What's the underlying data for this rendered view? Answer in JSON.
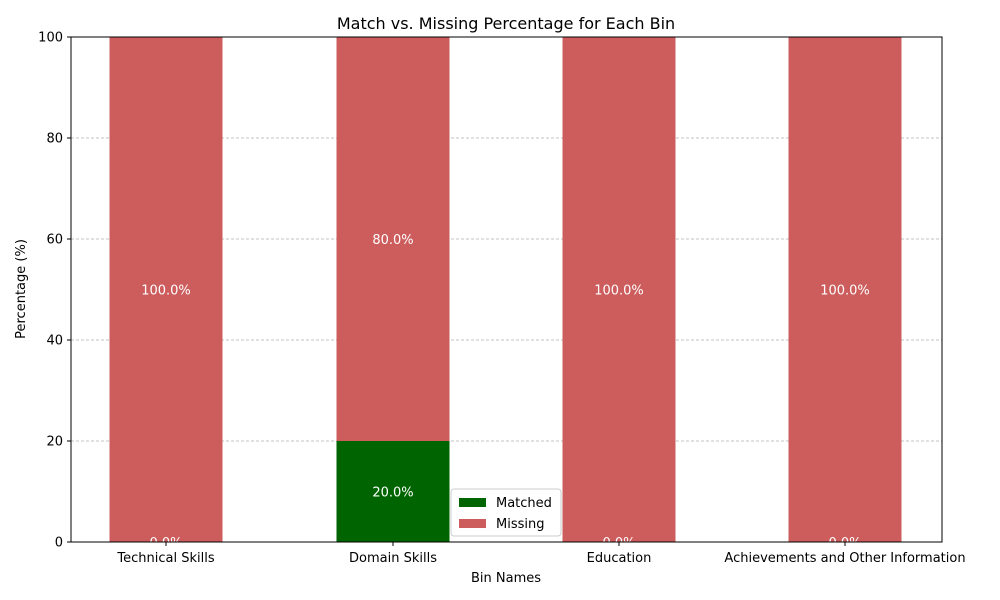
{
  "chart_data": {
    "type": "bar",
    "stacked": true,
    "title": "Match vs. Missing Percentage for Each Bin",
    "xlabel": "Bin Names",
    "ylabel": "Percentage (%)",
    "ylim": [
      0,
      100
    ],
    "yticks": [
      0,
      20,
      40,
      60,
      80,
      100
    ],
    "grid": "y-dashed",
    "categories": [
      "Technical Skills",
      "Domain Skills",
      "Education",
      "Achievements and Other Information"
    ],
    "series": [
      {
        "name": "Matched",
        "color": "#006400",
        "values": [
          0,
          20,
          0,
          0
        ],
        "labels": [
          "0.0%",
          "20.0%",
          "0.0%",
          "0.0%"
        ]
      },
      {
        "name": "Missing",
        "color": "#cd5c5c",
        "values": [
          100,
          80,
          100,
          100
        ],
        "labels": [
          "100.0%",
          "80.0%",
          "100.0%",
          "100.0%"
        ]
      }
    ],
    "legend": {
      "position": "lower-center",
      "entries": [
        "Matched",
        "Missing"
      ]
    }
  }
}
